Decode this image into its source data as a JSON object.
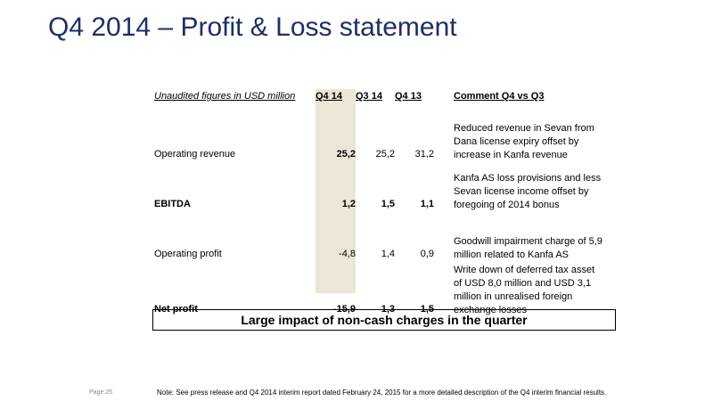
{
  "title": "Q4 2014 – Profit & Loss statement",
  "table": {
    "caption": "Unaudited figures in USD million",
    "headers": [
      "Q4 14",
      "Q3 14",
      "Q4 13",
      "Comment Q4 vs Q3"
    ],
    "rows": [
      {
        "label": "Operating revenue",
        "q4_14": "25,2",
        "q3_14": "25,2",
        "q4_13": "31,2",
        "comment": "Reduced revenue in Sevan from Dana license expiry offset by increase in Kanfa revenue"
      },
      {
        "label": "EBITDA",
        "q4_14": "1,2",
        "q3_14": "1,5",
        "q4_13": "1,1",
        "comment": "Kanfa AS loss provisions and less Sevan license income offset by foregoing of 2014 bonus"
      },
      {
        "label": "Operating profit",
        "q4_14": "-4,8",
        "q3_14": "1,4",
        "q4_13": "0,9",
        "comment": "Goodwill impairment charge of 5,9 million related to Kanfa AS"
      },
      {
        "label": "Net profit",
        "q4_14": "-15,9",
        "q3_14": "1,3",
        "q4_13": "1,5",
        "comment": "Write down of deferred tax asset of USD 8,0 million and USD 3,1 million in unrealised foreign exchange losses"
      }
    ]
  },
  "callout": "Large impact of non-cash charges in the quarter",
  "page_number": "Page 25",
  "footnote": "Note: See press release and Q4 2014 interim report dated February 24, 2015 for a more detailed description of the Q4 interim financial results.",
  "colors": {
    "title": "#1c2e6b",
    "highlight_column": "#ebe6d5"
  }
}
